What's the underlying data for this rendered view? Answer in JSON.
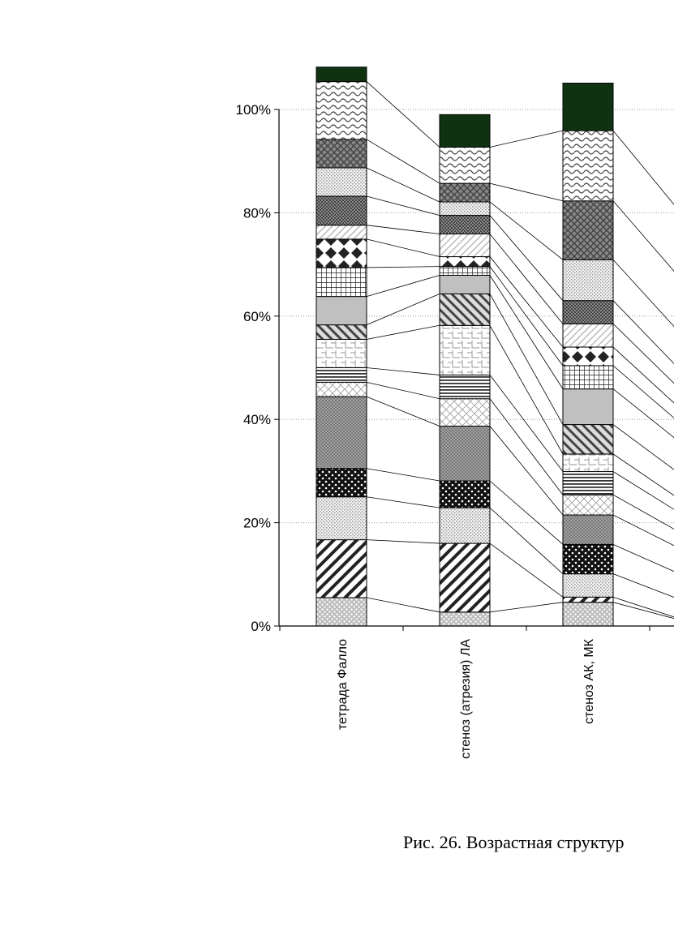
{
  "chart_data": {
    "type": "bar",
    "stacked": true,
    "percent": true,
    "categories": [
      "тетрада Фалло",
      "стеноз (атрезия) ЛА",
      "стеноз АК, МК"
    ],
    "yticks": [
      "0%",
      "20%",
      "40%",
      "60%",
      "80%",
      "100%"
    ],
    "ylim": [
      0,
      100
    ],
    "grid": true,
    "series": [
      {
        "values": [
          5.5,
          2.7,
          4.6
        ],
        "pattern": "dots-grey"
      },
      {
        "values": [
          11.2,
          13.3,
          1.0
        ],
        "pattern": "diag-thick"
      },
      {
        "values": [
          8.3,
          6.9,
          4.5
        ],
        "pattern": "dots-light"
      },
      {
        "values": [
          5.5,
          5.2,
          5.7
        ],
        "pattern": "black-dots"
      },
      {
        "values": [
          13.9,
          10.6,
          5.7
        ],
        "pattern": "cross-hatch"
      },
      {
        "values": [
          2.8,
          5.3,
          3.9
        ],
        "pattern": "diamond-light"
      },
      {
        "values": [
          2.8,
          4.6,
          4.5
        ],
        "pattern": "horiz-lines"
      },
      {
        "values": [
          5.5,
          9.6,
          3.4
        ],
        "pattern": "weave"
      },
      {
        "values": [
          2.8,
          6.1,
          5.7
        ],
        "pattern": "diag-wide"
      },
      {
        "values": [
          5.5,
          3.6,
          6.9
        ],
        "pattern": "solid-grey"
      },
      {
        "values": [
          5.6,
          1.7,
          4.5
        ],
        "pattern": "grid"
      },
      {
        "values": [
          5.5,
          1.9,
          3.6
        ],
        "pattern": "diamonds"
      },
      {
        "values": [
          2.7,
          4.4,
          4.5
        ],
        "pattern": "diag-light"
      },
      {
        "values": [
          5.6,
          3.6,
          4.5
        ],
        "pattern": "dark-check"
      },
      {
        "values": [
          5.5,
          2.6,
          7.9
        ],
        "pattern": "dots-light"
      },
      {
        "values": [
          5.5,
          3.6,
          11.4
        ],
        "pattern": "dark-weave"
      },
      {
        "values": [
          11.2,
          7.0,
          13.6
        ],
        "pattern": "wave"
      },
      {
        "values": [
          2.8,
          6.3,
          9.2
        ],
        "pattern": "solid-dark"
      }
    ]
  },
  "caption": "Рис. 26. Возрастная структур"
}
